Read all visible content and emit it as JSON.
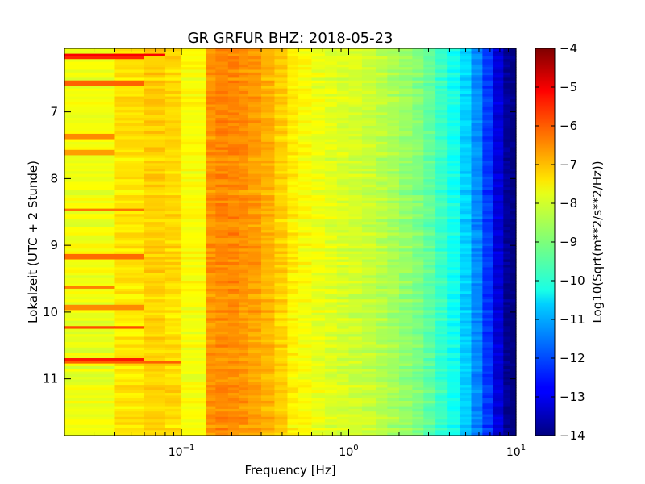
{
  "chart_data": {
    "type": "heatmap",
    "title": "GR GRFUR BHZ: 2018-05-23",
    "xlabel": "Frequency [Hz]",
    "ylabel": "Lokalzeit (UTC + 2 Stunde)",
    "xscale": "log",
    "xlim": [
      0.02,
      10
    ],
    "ylim": [
      6.05,
      11.85
    ],
    "y_inverted": true,
    "x_tick_labels": [
      {
        "value": 0.1,
        "base": "10",
        "exp": "−1"
      },
      {
        "value": 1,
        "base": "10",
        "exp": "0"
      },
      {
        "value": 10,
        "base": "10",
        "exp": "1"
      }
    ],
    "y_ticks": [
      7,
      8,
      9,
      10,
      11
    ],
    "colormap": "jet",
    "colorbar": {
      "label": "Log10(Sqrt(m**2/s**2/Hz))",
      "range": [
        -14,
        -4
      ],
      "ticks": [
        -4,
        -5,
        -6,
        -7,
        -8,
        -9,
        -10,
        -11,
        -12,
        -13,
        -14
      ]
    },
    "frequency_bin_edges": [
      0.02,
      0.04,
      0.06,
      0.08,
      0.1,
      0.14,
      0.16,
      0.19,
      0.22,
      0.25,
      0.3,
      0.36,
      0.43,
      0.5,
      0.6,
      0.72,
      0.85,
      1.0,
      1.2,
      1.45,
      1.7,
      2.0,
      2.4,
      2.8,
      3.3,
      3.9,
      4.6,
      5.4,
      6.3,
      7.3,
      8.4,
      9.2,
      10.0
    ],
    "spectrum_profile": [
      -7.9,
      -7.5,
      -7.3,
      -7.4,
      -7.8,
      -6.7,
      -6.6,
      -6.6,
      -6.7,
      -6.8,
      -7.0,
      -7.3,
      -7.6,
      -7.8,
      -7.95,
      -8.05,
      -8.15,
      -8.2,
      -8.3,
      -8.45,
      -8.6,
      -8.8,
      -9.0,
      -9.3,
      -9.7,
      -10.1,
      -10.7,
      -11.4,
      -12.2,
      -13.1,
      -13.8,
      -14.0
    ],
    "time_range": [
      6.05,
      11.85
    ],
    "time_step_hours": 0.04,
    "noise_amplitude": 0.35,
    "bright_events": [
      {
        "time": 6.12,
        "fmax": 0.085,
        "value": -5.2
      },
      {
        "time": 6.18,
        "fmax": 0.06,
        "value": -5.6
      },
      {
        "time": 6.55,
        "fmax": 0.06,
        "value": -6.2
      },
      {
        "time": 7.35,
        "fmax": 0.04,
        "value": -6.6
      },
      {
        "time": 7.6,
        "fmax": 0.04,
        "value": -6.8
      },
      {
        "time": 8.45,
        "fmax": 0.06,
        "value": -6.4
      },
      {
        "time": 9.15,
        "fmax": 0.06,
        "value": -6.3
      },
      {
        "time": 9.6,
        "fmax": 0.04,
        "value": -6.5
      },
      {
        "time": 9.9,
        "fmax": 0.06,
        "value": -6.6
      },
      {
        "time": 10.2,
        "fmax": 0.06,
        "value": -6.0
      },
      {
        "time": 10.68,
        "fmax": 0.06,
        "value": -5.5
      },
      {
        "time": 10.72,
        "fmax": 0.1,
        "value": -6.2
      }
    ]
  }
}
